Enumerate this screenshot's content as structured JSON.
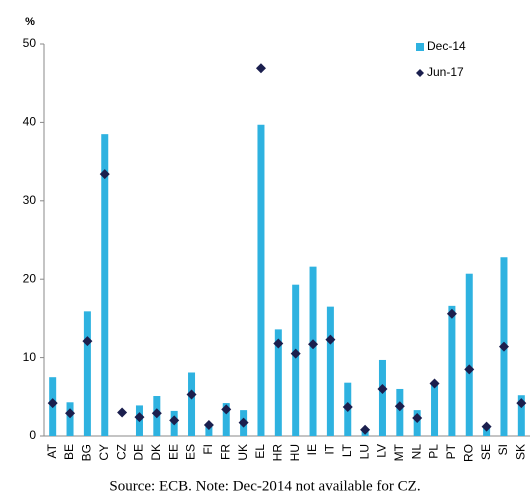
{
  "chart_data": {
    "type": "bar",
    "y_label": "%",
    "note": "Source: ECB. Note: Dec-2014 not available for CZ.",
    "categories": [
      "AT",
      "BE",
      "BG",
      "CY",
      "CZ",
      "DE",
      "DK",
      "EE",
      "ES",
      "FI",
      "FR",
      "UK",
      "EL",
      "HR",
      "HU",
      "IE",
      "IT",
      "LT",
      "LU",
      "LV",
      "MT",
      "NL",
      "PL",
      "PT",
      "RO",
      "SE",
      "SI",
      "SK"
    ],
    "series": [
      {
        "name": "Dec-14",
        "color": "#2eb2e0",
        "mark": "bar",
        "values": [
          7.5,
          4.3,
          15.9,
          38.5,
          null,
          3.9,
          5.1,
          3.2,
          8.1,
          1.2,
          4.2,
          3.3,
          39.7,
          13.6,
          19.3,
          21.6,
          16.5,
          6.8,
          0.6,
          9.7,
          6.0,
          3.3,
          6.6,
          16.6,
          20.7,
          1.0,
          22.8,
          5.2
        ]
      },
      {
        "name": "Jun-17",
        "color": "#1b1f4e",
        "mark": "diamond",
        "values": [
          4.2,
          2.9,
          12.1,
          33.4,
          3.0,
          2.4,
          2.9,
          2.0,
          5.3,
          1.4,
          3.4,
          1.7,
          46.9,
          11.8,
          10.5,
          11.7,
          12.3,
          3.7,
          0.8,
          6.0,
          3.8,
          2.3,
          6.7,
          15.6,
          8.5,
          1.2,
          11.4,
          4.2
        ]
      }
    ],
    "ylim": [
      0,
      50
    ],
    "yticks": [
      0,
      10,
      20,
      30,
      40,
      50
    ],
    "legend": "upper right"
  }
}
